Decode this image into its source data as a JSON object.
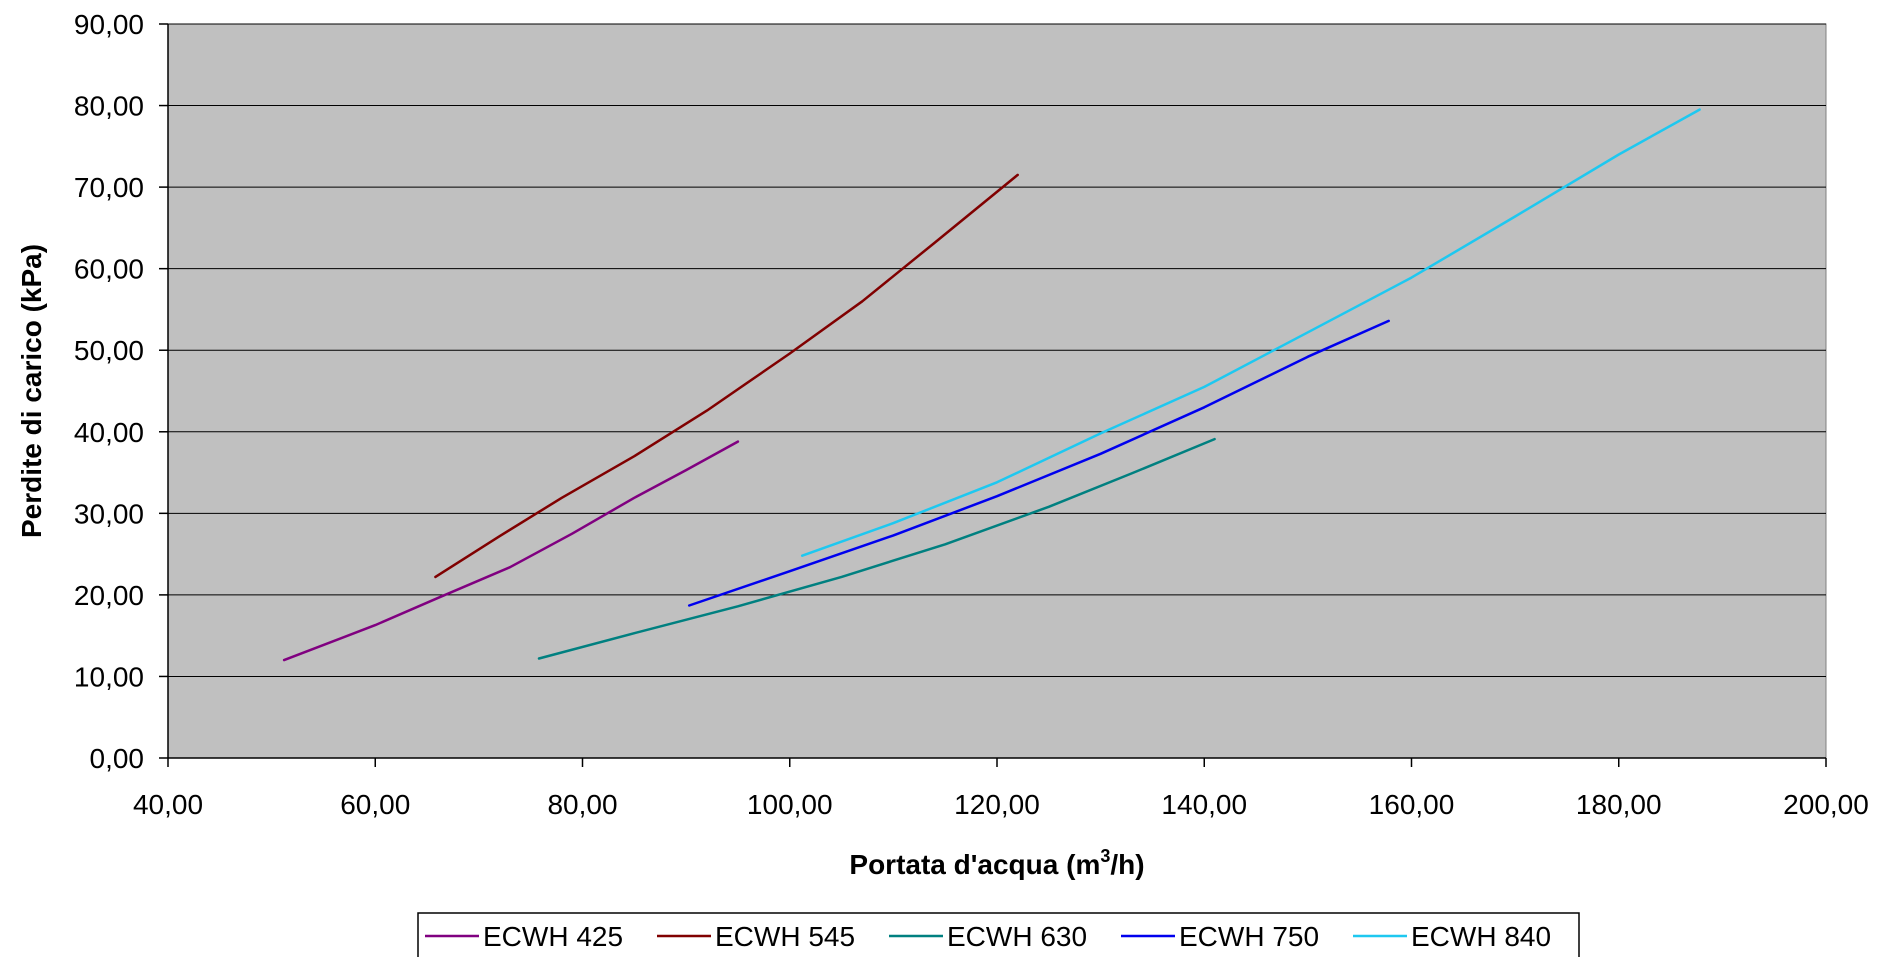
{
  "chart_data": {
    "type": "line",
    "title": "",
    "xlabel": "Portata d'acqua (m",
    "xlabel_sup": "3",
    "xlabel_tail": "/h)",
    "ylabel": "Perdite di carico (kPa)",
    "xlim": [
      40,
      200
    ],
    "ylim": [
      0,
      90
    ],
    "x_ticks": [
      40,
      60,
      80,
      100,
      120,
      140,
      160,
      180,
      200
    ],
    "y_ticks": [
      0,
      10,
      20,
      30,
      40,
      50,
      60,
      70,
      80,
      90
    ],
    "x_tick_labels": [
      "40,00",
      "60,00",
      "80,00",
      "100,00",
      "120,00",
      "140,00",
      "160,00",
      "180,00",
      "200,00"
    ],
    "y_tick_labels": [
      "0,00",
      "10,00",
      "20,00",
      "30,00",
      "40,00",
      "50,00",
      "60,00",
      "70,00",
      "80,00",
      "90,00"
    ],
    "grid": "horizontal major gridlines",
    "plot_background": "#c0c0c0",
    "legend_position": "bottom",
    "series": [
      {
        "name": "ECWH 425",
        "color": "#800080",
        "points": [
          [
            51.2,
            12.0
          ],
          [
            60,
            16.3
          ],
          [
            66,
            19.6
          ],
          [
            73,
            23.4
          ],
          [
            79,
            27.5
          ],
          [
            85,
            31.9
          ],
          [
            90,
            35.3
          ],
          [
            95.0,
            38.8
          ]
        ]
      },
      {
        "name": "ECWH 545",
        "color": "#800000",
        "points": [
          [
            65.8,
            22.2
          ],
          [
            72,
            27.2
          ],
          [
            78,
            31.9
          ],
          [
            85,
            37.0
          ],
          [
            92,
            42.6
          ],
          [
            100,
            49.6
          ],
          [
            107,
            56.0
          ],
          [
            114,
            63.2
          ],
          [
            122.0,
            71.5
          ]
        ]
      },
      {
        "name": "ECWH 630",
        "color": "#008080",
        "points": [
          [
            75.8,
            12.2
          ],
          [
            85,
            15.3
          ],
          [
            95,
            18.6
          ],
          [
            105,
            22.2
          ],
          [
            115,
            26.2
          ],
          [
            125,
            30.8
          ],
          [
            133,
            34.9
          ],
          [
            141.0,
            39.1
          ]
        ]
      },
      {
        "name": "ECWH 750",
        "color": "#0000ee",
        "points": [
          [
            90.3,
            18.7
          ],
          [
            100,
            22.9
          ],
          [
            110,
            27.3
          ],
          [
            120,
            32.1
          ],
          [
            130,
            37.3
          ],
          [
            140,
            43.0
          ],
          [
            150,
            49.2
          ],
          [
            157.8,
            53.6
          ]
        ]
      },
      {
        "name": "ECWH 840",
        "color": "#1ec8f0",
        "points": [
          [
            101.2,
            24.8
          ],
          [
            110,
            28.8
          ],
          [
            120,
            33.8
          ],
          [
            130,
            39.8
          ],
          [
            140,
            45.5
          ],
          [
            150,
            52.2
          ],
          [
            160,
            58.9
          ],
          [
            170,
            66.4
          ],
          [
            180,
            74.0
          ],
          [
            187.8,
            79.5
          ]
        ]
      }
    ]
  }
}
